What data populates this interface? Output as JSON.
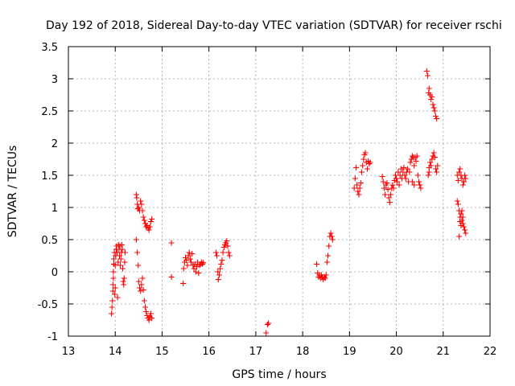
{
  "chart_data": {
    "type": "scatter",
    "title": "Day 192 of 2018, Sidereal Day-to-day VTEC variation (SDTVAR) for receiver rschi",
    "xlabel": "GPS time / hours",
    "ylabel": "SDTVAR / TECUs",
    "xlim": [
      13,
      22
    ],
    "ylim": [
      -1,
      3.5
    ],
    "xticks": [
      13,
      14,
      15,
      16,
      17,
      18,
      19,
      20,
      21,
      22
    ],
    "yticks": [
      -1,
      -0.5,
      0,
      0.5,
      1,
      1.5,
      2,
      2.5,
      3,
      3.5
    ],
    "xtick_labels": [
      "13",
      "14",
      "15",
      "16",
      "17",
      "18",
      "19",
      "20",
      "21",
      "22"
    ],
    "ytick_labels": [
      "-1",
      "-0.5",
      "0",
      "0.5",
      "1",
      "1.5",
      "2",
      "2.5",
      "3",
      "3.5"
    ],
    "grid": true,
    "marker": "+",
    "color": "#ff0000",
    "series": [
      {
        "name": "SDTVAR",
        "points": [
          [
            13.92,
            -0.65
          ],
          [
            13.93,
            -0.55
          ],
          [
            13.94,
            -0.45
          ],
          [
            13.95,
            -0.3
          ],
          [
            13.95,
            -0.2
          ],
          [
            13.96,
            -0.1
          ],
          [
            13.96,
            0.0
          ],
          [
            13.97,
            0.12
          ],
          [
            13.97,
            0.2
          ],
          [
            13.98,
            0.3
          ],
          [
            13.99,
            -0.35
          ],
          [
            14.0,
            -0.25
          ],
          [
            14.0,
            0.1
          ],
          [
            14.01,
            0.25
          ],
          [
            14.02,
            0.35
          ],
          [
            14.03,
            0.4
          ],
          [
            14.04,
            0.3
          ],
          [
            14.05,
            -0.4
          ],
          [
            14.06,
            0.15
          ],
          [
            14.07,
            0.42
          ],
          [
            14.08,
            0.35
          ],
          [
            14.09,
            0.25
          ],
          [
            14.1,
            0.4
          ],
          [
            14.11,
            0.1
          ],
          [
            14.12,
            0.2
          ],
          [
            14.13,
            0.3
          ],
          [
            14.14,
            0.42
          ],
          [
            14.15,
            0.35
          ],
          [
            14.16,
            0.05
          ],
          [
            14.17,
            -0.15
          ],
          [
            14.18,
            -0.2
          ],
          [
            14.19,
            -0.1
          ],
          [
            14.2,
            0.15
          ],
          [
            14.21,
            0.3
          ],
          [
            14.45,
            1.2
          ],
          [
            14.46,
            1.15
          ],
          [
            14.47,
            1.05
          ],
          [
            14.48,
            0.98
          ],
          [
            14.5,
            1.0
          ],
          [
            14.52,
            0.95
          ],
          [
            14.54,
            1.1
          ],
          [
            14.56,
            1.05
          ],
          [
            14.58,
            0.95
          ],
          [
            14.6,
            0.85
          ],
          [
            14.62,
            0.8
          ],
          [
            14.64,
            0.75
          ],
          [
            14.66,
            0.7
          ],
          [
            14.68,
            0.72
          ],
          [
            14.7,
            0.68
          ],
          [
            14.72,
            0.65
          ],
          [
            14.74,
            0.7
          ],
          [
            14.76,
            0.78
          ],
          [
            14.78,
            0.82
          ],
          [
            14.45,
            0.5
          ],
          [
            14.47,
            0.3
          ],
          [
            14.49,
            0.1
          ],
          [
            14.5,
            -0.15
          ],
          [
            14.52,
            -0.25
          ],
          [
            14.54,
            -0.3
          ],
          [
            14.56,
            -0.2
          ],
          [
            14.58,
            -0.1
          ],
          [
            14.6,
            -0.28
          ],
          [
            14.62,
            -0.45
          ],
          [
            14.64,
            -0.55
          ],
          [
            14.66,
            -0.62
          ],
          [
            14.68,
            -0.68
          ],
          [
            14.7,
            -0.72
          ],
          [
            14.72,
            -0.75
          ],
          [
            14.74,
            -0.7
          ],
          [
            14.76,
            -0.65
          ],
          [
            14.78,
            -0.72
          ],
          [
            15.2,
            0.45
          ],
          [
            15.2,
            -0.08
          ],
          [
            15.45,
            -0.18
          ],
          [
            15.46,
            0.05
          ],
          [
            15.48,
            0.15
          ],
          [
            15.5,
            0.22
          ],
          [
            15.52,
            0.18
          ],
          [
            15.54,
            0.1
          ],
          [
            15.56,
            0.25
          ],
          [
            15.58,
            0.3
          ],
          [
            15.6,
            0.2
          ],
          [
            15.62,
            0.15
          ],
          [
            15.64,
            0.28
          ],
          [
            15.66,
            0.1
          ],
          [
            15.68,
            0.05
          ],
          [
            15.7,
            0.12
          ],
          [
            15.72,
            0.0
          ],
          [
            15.74,
            0.08
          ],
          [
            15.76,
            0.15
          ],
          [
            15.78,
            -0.02
          ],
          [
            15.8,
            0.1
          ],
          [
            15.82,
            0.12
          ],
          [
            15.84,
            0.15
          ],
          [
            15.86,
            0.12
          ],
          [
            15.88,
            0.14
          ],
          [
            16.15,
            0.3
          ],
          [
            16.17,
            0.25
          ],
          [
            16.19,
            0.0
          ],
          [
            16.2,
            -0.12
          ],
          [
            16.22,
            -0.05
          ],
          [
            16.24,
            0.05
          ],
          [
            16.26,
            0.12
          ],
          [
            16.28,
            0.18
          ],
          [
            16.3,
            0.3
          ],
          [
            16.32,
            0.38
          ],
          [
            16.34,
            0.42
          ],
          [
            16.36,
            0.45
          ],
          [
            16.38,
            0.48
          ],
          [
            16.4,
            0.4
          ],
          [
            16.42,
            0.3
          ],
          [
            16.44,
            0.25
          ],
          [
            17.22,
            -0.95
          ],
          [
            17.25,
            -0.82
          ],
          [
            17.27,
            -0.8
          ],
          [
            18.3,
            0.12
          ],
          [
            18.32,
            -0.02
          ],
          [
            18.34,
            -0.08
          ],
          [
            18.36,
            -0.05
          ],
          [
            18.38,
            -0.1
          ],
          [
            18.4,
            -0.05
          ],
          [
            18.42,
            -0.08
          ],
          [
            18.44,
            -0.12
          ],
          [
            18.46,
            -0.08
          ],
          [
            18.48,
            -0.1
          ],
          [
            18.5,
            -0.05
          ],
          [
            18.52,
            0.15
          ],
          [
            18.54,
            0.25
          ],
          [
            18.56,
            0.4
          ],
          [
            18.58,
            0.55
          ],
          [
            18.6,
            0.6
          ],
          [
            18.62,
            0.55
          ],
          [
            18.64,
            0.5
          ],
          [
            19.1,
            1.3
          ],
          [
            19.12,
            1.45
          ],
          [
            19.14,
            1.62
          ],
          [
            19.16,
            1.35
          ],
          [
            19.18,
            1.25
          ],
          [
            19.2,
            1.2
          ],
          [
            19.22,
            1.3
          ],
          [
            19.24,
            1.38
          ],
          [
            19.26,
            1.55
          ],
          [
            19.28,
            1.65
          ],
          [
            19.3,
            1.75
          ],
          [
            19.32,
            1.82
          ],
          [
            19.34,
            1.85
          ],
          [
            19.36,
            1.7
          ],
          [
            19.38,
            1.6
          ],
          [
            19.4,
            1.72
          ],
          [
            19.42,
            1.68
          ],
          [
            19.44,
            1.7
          ],
          [
            19.7,
            1.48
          ],
          [
            19.72,
            1.4
          ],
          [
            19.74,
            1.3
          ],
          [
            19.76,
            1.2
          ],
          [
            19.78,
            1.35
          ],
          [
            19.8,
            1.38
          ],
          [
            19.82,
            1.28
          ],
          [
            19.84,
            1.15
          ],
          [
            19.86,
            1.08
          ],
          [
            19.88,
            1.2
          ],
          [
            19.9,
            1.3
          ],
          [
            19.92,
            1.35
          ],
          [
            19.94,
            1.3
          ],
          [
            19.96,
            1.42
          ],
          [
            19.98,
            1.5
          ],
          [
            20.0,
            1.45
          ],
          [
            20.02,
            1.4
          ],
          [
            20.04,
            1.55
          ],
          [
            20.06,
            1.35
          ],
          [
            20.08,
            1.5
          ],
          [
            20.1,
            1.6
          ],
          [
            20.12,
            1.45
          ],
          [
            20.14,
            1.55
          ],
          [
            20.16,
            1.62
          ],
          [
            20.18,
            1.5
          ],
          [
            20.2,
            1.45
          ],
          [
            20.22,
            1.55
          ],
          [
            20.24,
            1.6
          ],
          [
            20.26,
            1.4
          ],
          [
            20.28,
            1.55
          ],
          [
            20.3,
            1.7
          ],
          [
            20.32,
            1.75
          ],
          [
            20.34,
            1.8
          ],
          [
            20.36,
            1.78
          ],
          [
            20.38,
            1.65
          ],
          [
            20.4,
            1.78
          ],
          [
            20.42,
            1.72
          ],
          [
            20.44,
            1.8
          ],
          [
            20.46,
            1.5
          ],
          [
            20.48,
            1.4
          ],
          [
            20.5,
            1.35
          ],
          [
            20.52,
            1.3
          ],
          [
            20.34,
            1.4
          ],
          [
            20.38,
            1.35
          ],
          [
            20.65,
            3.12
          ],
          [
            20.67,
            3.05
          ],
          [
            20.69,
            2.78
          ],
          [
            20.7,
            2.85
          ],
          [
            20.72,
            2.75
          ],
          [
            20.74,
            2.68
          ],
          [
            20.76,
            2.72
          ],
          [
            20.78,
            2.6
          ],
          [
            20.8,
            2.55
          ],
          [
            20.82,
            2.5
          ],
          [
            20.84,
            2.42
          ],
          [
            20.86,
            2.38
          ],
          [
            20.68,
            1.5
          ],
          [
            20.7,
            1.62
          ],
          [
            20.72,
            1.7
          ],
          [
            20.74,
            1.65
          ],
          [
            20.76,
            1.75
          ],
          [
            20.78,
            1.8
          ],
          [
            20.8,
            1.85
          ],
          [
            20.82,
            1.78
          ],
          [
            20.84,
            1.6
          ],
          [
            20.86,
            1.55
          ],
          [
            20.88,
            1.65
          ],
          [
            20.7,
            1.55
          ],
          [
            21.3,
            1.5
          ],
          [
            21.32,
            1.42
          ],
          [
            21.34,
            1.55
          ],
          [
            21.36,
            1.6
          ],
          [
            21.38,
            1.5
          ],
          [
            21.4,
            1.45
          ],
          [
            21.42,
            1.35
          ],
          [
            21.44,
            1.4
          ],
          [
            21.46,
            1.5
          ],
          [
            21.48,
            1.45
          ],
          [
            21.3,
            1.1
          ],
          [
            21.32,
            1.05
          ],
          [
            21.34,
            0.95
          ],
          [
            21.36,
            0.85
          ],
          [
            21.38,
            0.9
          ],
          [
            21.4,
            0.8
          ],
          [
            21.42,
            0.75
          ],
          [
            21.44,
            0.7
          ],
          [
            21.46,
            0.65
          ],
          [
            21.48,
            0.6
          ],
          [
            21.34,
            0.55
          ],
          [
            21.36,
            0.78
          ],
          [
            21.38,
            0.72
          ],
          [
            21.4,
            0.95
          ],
          [
            21.42,
            0.85
          ]
        ]
      }
    ]
  }
}
